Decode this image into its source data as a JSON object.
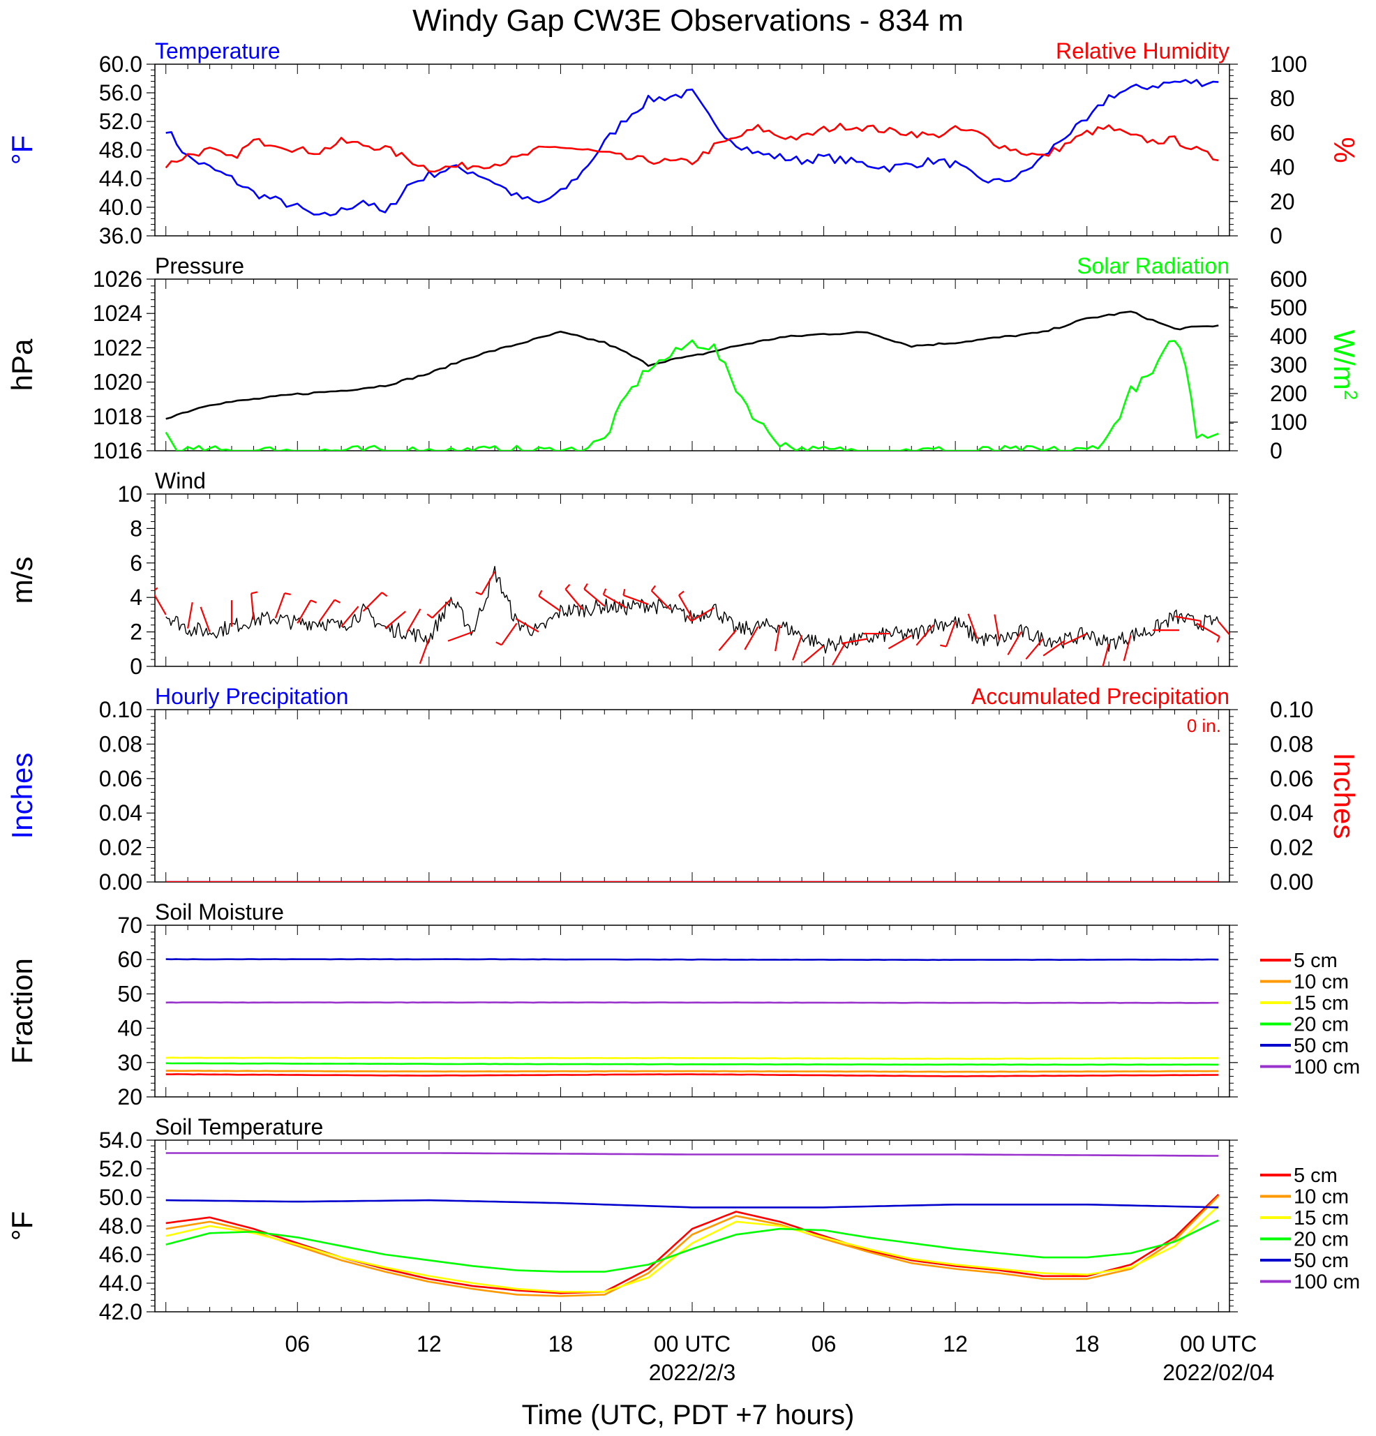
{
  "figure": {
    "title": "Windy Gap CW3E Observations - 834 m",
    "xlabel": "Time (UTC, PDT +7 hours)"
  },
  "colors": {
    "temperature": "#0000ff",
    "humidity": "#ff0000",
    "pressure": "#000000",
    "solar": "#00ff00",
    "wind": "#000000",
    "barbs": "#ff0000",
    "hourly_precip": "#0000ff",
    "accum_precip": "#ff0000",
    "depths": [
      "#ff0000",
      "#ff9900",
      "#ffff00",
      "#00ff00",
      "#0000cc",
      "#9933cc"
    ]
  },
  "x_axis": {
    "range_hours": [
      -24.5,
      24.5
    ],
    "major_ticks": [
      -18,
      -12,
      -6,
      0,
      6,
      12,
      18,
      24
    ],
    "tick_labels": [
      "06",
      "12",
      "18",
      "00 UTC",
      "06",
      "12",
      "18",
      "00 UTC"
    ],
    "date_labels": [
      {
        "at": 0,
        "text": "2022/2/3"
      },
      {
        "at": 24,
        "text": "2022/02/04"
      }
    ]
  },
  "chart_data": [
    {
      "type": "line",
      "id": "temp_rh",
      "title_left": "Temperature",
      "title_right": "Relative Humidity",
      "ylabel_left": "°F",
      "ylabel_right": "%",
      "ylim_left": [
        36,
        60
      ],
      "ylim_right": [
        0,
        100
      ],
      "yticks_left": [
        "36.0",
        "40.0",
        "44.0",
        "48.0",
        "52.0",
        "56.0",
        "60.0"
      ],
      "yticks_right": [
        "0",
        "20",
        "40",
        "60",
        "80",
        "100"
      ],
      "series": [
        {
          "name": "Temperature",
          "axis": "left",
          "color_key": "temperature",
          "x": [
            -24,
            -23,
            -22,
            -21,
            -20,
            -19,
            -18,
            -17,
            -16,
            -15,
            -14,
            -13,
            -12,
            -11,
            -10,
            -9,
            -8,
            -7,
            -6,
            -5,
            -4,
            -3,
            -2,
            -1,
            0,
            1,
            2,
            3,
            4,
            5,
            6,
            7,
            8,
            9,
            10,
            11,
            12,
            13,
            14,
            15,
            16,
            17,
            18,
            19,
            20,
            21,
            22,
            23,
            24
          ],
          "y": [
            51,
            47,
            45.5,
            44,
            42,
            41,
            40,
            38.5,
            39.5,
            41,
            39,
            43,
            44.5,
            45.5,
            45,
            43.5,
            41.5,
            40.5,
            42,
            45,
            49,
            52.5,
            55,
            55.5,
            56,
            51.5,
            49,
            47.5,
            47,
            46.5,
            47,
            46.5,
            46,
            45.5,
            46,
            46.5,
            46,
            44,
            43.5,
            44.5,
            47,
            50,
            52,
            55.5,
            56.5,
            57,
            57.5,
            57.5,
            57.5
          ]
        },
        {
          "name": "Relative Humidity",
          "axis": "right",
          "color_key": "humidity",
          "x": [
            -24,
            -23,
            -22,
            -21,
            -20,
            -19,
            -18,
            -17,
            -16,
            -15,
            -14,
            -13,
            -12,
            -11,
            -10,
            -9,
            -8,
            -7,
            -6,
            -5,
            -4,
            -3,
            -2,
            -1,
            0,
            1,
            2,
            3,
            4,
            5,
            6,
            7,
            8,
            9,
            10,
            11,
            12,
            13,
            14,
            15,
            16,
            17,
            18,
            19,
            20,
            21,
            22,
            23,
            24
          ],
          "y": [
            41,
            47,
            50,
            45,
            55,
            54,
            50,
            49,
            55,
            53,
            51,
            45,
            39,
            40,
            41,
            42,
            45,
            50,
            52,
            50,
            48,
            45,
            44,
            43,
            43,
            52,
            57,
            63,
            58,
            57,
            62,
            64,
            63,
            61,
            60,
            58,
            62,
            60,
            53,
            49,
            46,
            53,
            60,
            63,
            58,
            55,
            56,
            50,
            44
          ]
        }
      ]
    },
    {
      "type": "line",
      "id": "pressure_solar",
      "title_left": "Pressure",
      "title_right": "Solar Radiation",
      "ylabel_left": "hPa",
      "ylabel_right": "W/m",
      "ylabel_right_sup": "2",
      "ylim_left": [
        1016,
        1026
      ],
      "ylim_right": [
        0,
        600
      ],
      "yticks_left": [
        "1016",
        "1018",
        "1020",
        "1022",
        "1024",
        "1026"
      ],
      "yticks_right": [
        "0",
        "100",
        "200",
        "300",
        "400",
        "500",
        "600"
      ],
      "series": [
        {
          "name": "Pressure",
          "axis": "left",
          "color_key": "pressure",
          "x": [
            -24,
            -22,
            -20,
            -18,
            -16,
            -14,
            -12,
            -10,
            -8,
            -6,
            -4,
            -3,
            -2,
            -1,
            0,
            2,
            4,
            6,
            8,
            10,
            12,
            14,
            16,
            18,
            20,
            22,
            24
          ],
          "y": [
            1017.9,
            1018.7,
            1019.0,
            1019.3,
            1019.5,
            1019.8,
            1020.5,
            1021.5,
            1022.2,
            1022.9,
            1022.3,
            1021.7,
            1021.0,
            1021.3,
            1021.5,
            1022.1,
            1022.6,
            1022.8,
            1022.9,
            1022.1,
            1022.3,
            1022.6,
            1022.9,
            1023.7,
            1024.1,
            1023.1,
            1023.3
          ]
        },
        {
          "name": "Solar Radiation",
          "axis": "right",
          "color_key": "solar",
          "x": [
            -24,
            -23.5,
            -15.5,
            -15,
            -14,
            -13,
            -12,
            -11,
            -10,
            -9,
            -8,
            -7,
            -6,
            -5,
            -4,
            -3,
            -2,
            -1,
            0,
            1,
            2,
            3,
            4,
            5,
            6,
            7,
            8,
            9,
            10,
            11,
            12,
            13,
            14,
            14.5,
            15,
            16,
            17,
            18,
            19,
            20,
            21,
            22,
            22.5,
            23,
            24
          ],
          "y": [
            60,
            0,
            0,
            0,
            0,
            0,
            0,
            0,
            0,
            0,
            0,
            0,
            0,
            5,
            40,
            190,
            290,
            330,
            380,
            360,
            220,
            100,
            30,
            0,
            0,
            0,
            0,
            0,
            0,
            0,
            0,
            0,
            0,
            0,
            0,
            0,
            0,
            0,
            50,
            210,
            270,
            400,
            300,
            60,
            60
          ]
        }
      ]
    },
    {
      "type": "line",
      "id": "wind",
      "title_left": "Wind",
      "ylabel_left": "m/s",
      "ylim_left": [
        0,
        10
      ],
      "yticks_left": [
        "0",
        "2",
        "4",
        "6",
        "8",
        "10"
      ],
      "series": [
        {
          "name": "Wind",
          "axis": "left",
          "color_key": "wind",
          "x": [
            -24,
            -23,
            -22,
            -21,
            -20,
            -19,
            -18,
            -17,
            -16,
            -15,
            -14,
            -13,
            -12,
            -11,
            -10,
            -9,
            -8,
            -7,
            -6,
            -5,
            -4,
            -3,
            -2,
            -1,
            0,
            1,
            2,
            3,
            4,
            5,
            6,
            7,
            8,
            9,
            10,
            11,
            12,
            13,
            14,
            15,
            16,
            17,
            18,
            19,
            20,
            21,
            22,
            23,
            24
          ],
          "y": [
            3.0,
            2.2,
            2.0,
            2.3,
            2.7,
            2.8,
            2.5,
            2.6,
            2.3,
            3.2,
            2.2,
            2.0,
            1.6,
            3.9,
            2.0,
            5.5,
            2.5,
            2.0,
            3.2,
            3.3,
            3.5,
            3.4,
            3.6,
            3.3,
            2.8,
            3.4,
            2.1,
            2.3,
            2.4,
            1.8,
            1.2,
            1.4,
            1.6,
            1.9,
            1.8,
            2.4,
            2.6,
            1.6,
            1.5,
            2.0,
            1.6,
            1.5,
            1.9,
            1.3,
            1.8,
            2.1,
            2.9,
            2.5,
            2.6
          ]
        }
      ],
      "barbs_deg": [
        330,
        10,
        340,
        0,
        355,
        20,
        30,
        35,
        40,
        45,
        50,
        30,
        200,
        225,
        250,
        210,
        215,
        300,
        305,
        320,
        310,
        300,
        290,
        315,
        330,
        240,
        220,
        210,
        190,
        200,
        230,
        210,
        260,
        270,
        240,
        220,
        200,
        340,
        350,
        210,
        220,
        235,
        245,
        195,
        195,
        90,
        100,
        120,
        140
      ]
    },
    {
      "type": "line",
      "id": "precip",
      "title_left": "Hourly Precipitation",
      "title_right": "Accumulated Precipitation",
      "total_label": "0 in.",
      "ylabel_left": "Inches",
      "ylabel_right": "Inches",
      "ylim_left": [
        0,
        0.1
      ],
      "ylim_right": [
        0,
        0.1
      ],
      "yticks_left": [
        "0.00",
        "0.02",
        "0.04",
        "0.06",
        "0.08",
        "0.10"
      ],
      "yticks_right": [
        "0.00",
        "0.02",
        "0.04",
        "0.06",
        "0.08",
        "0.10"
      ],
      "series": [
        {
          "name": "Hourly Precipitation",
          "axis": "left",
          "color_key": "hourly_precip",
          "x": [
            -24,
            24
          ],
          "y": [
            0,
            0
          ]
        },
        {
          "name": "Accumulated Precipitation",
          "axis": "left",
          "color_key": "accum_precip",
          "x": [
            -24,
            24
          ],
          "y": [
            0,
            0
          ]
        }
      ]
    },
    {
      "type": "line",
      "id": "soil_moisture",
      "title_left": "Soil Moisture",
      "ylabel_left": "Fraction",
      "ylim_left": [
        20,
        70
      ],
      "yticks_left": [
        "20",
        "30",
        "40",
        "50",
        "60",
        "70"
      ],
      "legend_position": "right",
      "series": [
        {
          "name": "5 cm",
          "axis": "left",
          "color_index": 0,
          "x": [
            -24,
            -12,
            0,
            12,
            24
          ],
          "y": [
            26.6,
            26.2,
            26.6,
            26.0,
            26.4
          ]
        },
        {
          "name": "10 cm",
          "axis": "left",
          "color_index": 1,
          "x": [
            -24,
            -12,
            0,
            12,
            24
          ],
          "y": [
            27.6,
            27.4,
            27.5,
            27.3,
            27.5
          ]
        },
        {
          "name": "15 cm",
          "axis": "left",
          "color_index": 2,
          "x": [
            -24,
            -12,
            0,
            12,
            24
          ],
          "y": [
            31.4,
            31.3,
            31.3,
            31.1,
            31.3
          ]
        },
        {
          "name": "20 cm",
          "axis": "left",
          "color_index": 3,
          "x": [
            -24,
            -12,
            0,
            12,
            24
          ],
          "y": [
            29.8,
            29.6,
            29.5,
            29.4,
            29.4
          ]
        },
        {
          "name": "50 cm",
          "axis": "left",
          "color_index": 4,
          "x": [
            -24,
            -12,
            0,
            12,
            24
          ],
          "y": [
            60.1,
            60.1,
            60.0,
            59.9,
            60.0
          ]
        },
        {
          "name": "100 cm",
          "axis": "left",
          "color_index": 5,
          "x": [
            -24,
            -12,
            0,
            12,
            24
          ],
          "y": [
            47.5,
            47.5,
            47.5,
            47.4,
            47.4
          ]
        }
      ]
    },
    {
      "type": "line",
      "id": "soil_temperature",
      "title_left": "Soil Temperature",
      "ylabel_left": "°F",
      "ylim_left": [
        42,
        54
      ],
      "yticks_left": [
        "42.0",
        "44.0",
        "46.0",
        "48.0",
        "50.0",
        "52.0",
        "54.0"
      ],
      "legend_position": "right",
      "series": [
        {
          "name": "5 cm",
          "axis": "left",
          "color_index": 0,
          "x": [
            -24,
            -22,
            -20,
            -18,
            -16,
            -14,
            -12,
            -10,
            -8,
            -6,
            -4,
            -2,
            0,
            2,
            4,
            6,
            8,
            10,
            12,
            14,
            16,
            18,
            20,
            22,
            24
          ],
          "y": [
            48.2,
            48.6,
            47.8,
            46.8,
            45.8,
            45.0,
            44.3,
            43.8,
            43.5,
            43.3,
            43.4,
            45.0,
            47.8,
            49.0,
            48.3,
            47.3,
            46.3,
            45.6,
            45.2,
            44.9,
            44.5,
            44.5,
            45.3,
            47.2,
            50.2
          ]
        },
        {
          "name": "10 cm",
          "axis": "left",
          "color_index": 1,
          "x": [
            -24,
            -22,
            -20,
            -18,
            -16,
            -14,
            -12,
            -10,
            -8,
            -6,
            -4,
            -2,
            0,
            2,
            4,
            6,
            8,
            10,
            12,
            14,
            16,
            18,
            20,
            22,
            24
          ],
          "y": [
            47.8,
            48.3,
            47.6,
            46.6,
            45.6,
            44.8,
            44.1,
            43.6,
            43.2,
            43.1,
            43.2,
            44.7,
            47.4,
            48.7,
            48.1,
            47.1,
            46.2,
            45.4,
            45.0,
            44.7,
            44.3,
            44.3,
            45.0,
            47.0,
            50.1
          ]
        },
        {
          "name": "15 cm",
          "axis": "left",
          "color_index": 2,
          "x": [
            -24,
            -22,
            -20,
            -18,
            -16,
            -14,
            -12,
            -10,
            -8,
            -6,
            -4,
            -2,
            0,
            2,
            4,
            6,
            8,
            10,
            12,
            14,
            16,
            18,
            20,
            22,
            24
          ],
          "y": [
            47.3,
            48.0,
            47.5,
            46.7,
            45.8,
            45.1,
            44.5,
            44.0,
            43.6,
            43.4,
            43.4,
            44.4,
            46.8,
            48.3,
            48.0,
            47.2,
            46.4,
            45.7,
            45.3,
            45.0,
            44.7,
            44.6,
            45.1,
            46.6,
            49.4
          ]
        },
        {
          "name": "20 cm",
          "axis": "left",
          "color_index": 3,
          "x": [
            -24,
            -22,
            -20,
            -18,
            -16,
            -14,
            -12,
            -10,
            -8,
            -6,
            -4,
            -2,
            0,
            2,
            4,
            6,
            8,
            10,
            12,
            14,
            16,
            18,
            20,
            22,
            24
          ],
          "y": [
            46.7,
            47.5,
            47.6,
            47.2,
            46.6,
            46.0,
            45.6,
            45.2,
            44.9,
            44.8,
            44.8,
            45.3,
            46.4,
            47.4,
            47.8,
            47.7,
            47.2,
            46.8,
            46.4,
            46.1,
            45.8,
            45.8,
            46.1,
            46.9,
            48.4
          ]
        },
        {
          "name": "50 cm",
          "axis": "left",
          "color_index": 4,
          "x": [
            -24,
            -18,
            -12,
            -6,
            0,
            6,
            12,
            18,
            24
          ],
          "y": [
            49.8,
            49.7,
            49.8,
            49.6,
            49.3,
            49.3,
            49.5,
            49.5,
            49.3
          ]
        },
        {
          "name": "100 cm",
          "axis": "left",
          "color_index": 5,
          "x": [
            -24,
            -12,
            0,
            12,
            24
          ],
          "y": [
            53.1,
            53.1,
            53.0,
            53.0,
            52.9
          ]
        }
      ]
    }
  ]
}
